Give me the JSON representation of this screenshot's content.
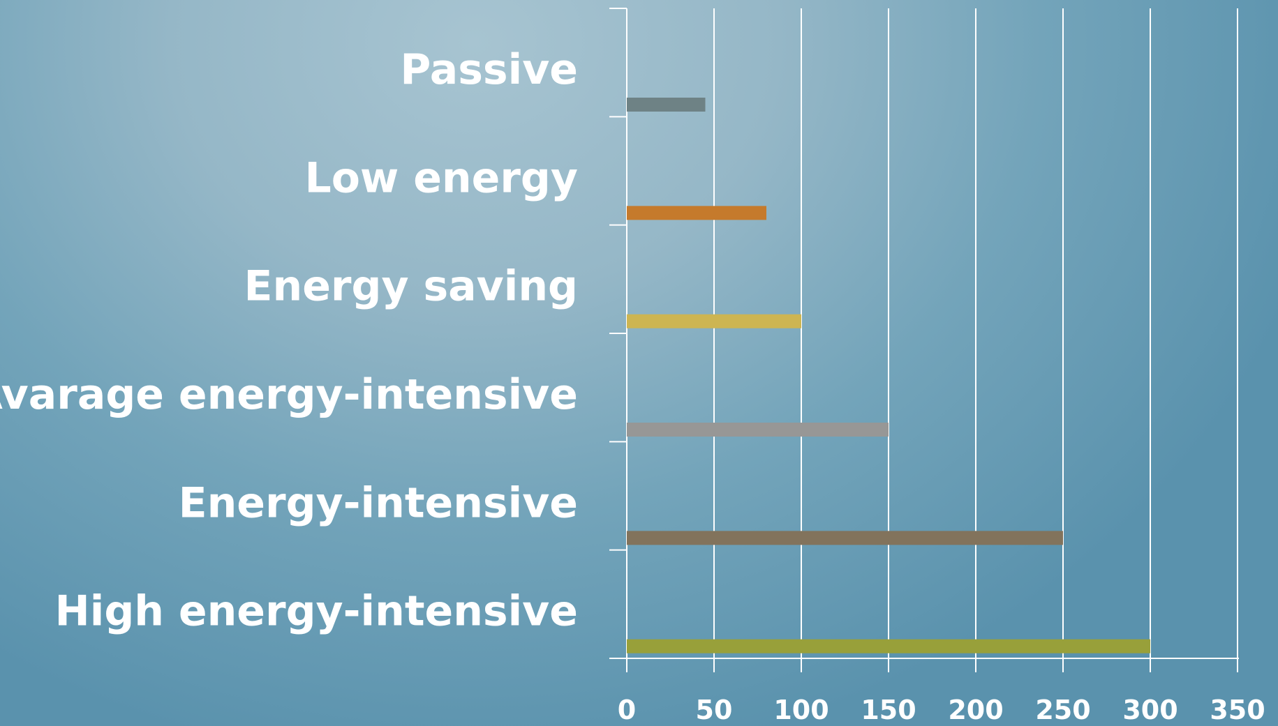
{
  "chart_data": {
    "type": "bar",
    "orientation": "horizontal",
    "categories": [
      "Passive",
      "Low energy",
      "Energy saving",
      "Avarage energy-intensive",
      "Energy-intensive",
      "High energy-intensive"
    ],
    "values": [
      45,
      80,
      100,
      150,
      250,
      300
    ],
    "colors": [
      "#6e8285",
      "#c57a2c",
      "#cdb552",
      "#979796",
      "#82735c",
      "#98a03a"
    ],
    "xlim": [
      0,
      350
    ],
    "xticks": [
      "0",
      "50",
      "100",
      "150",
      "200",
      "250",
      "300",
      "350"
    ],
    "title": "",
    "xlabel": "",
    "ylabel": "",
    "grid": "vertical",
    "legend": "none"
  }
}
